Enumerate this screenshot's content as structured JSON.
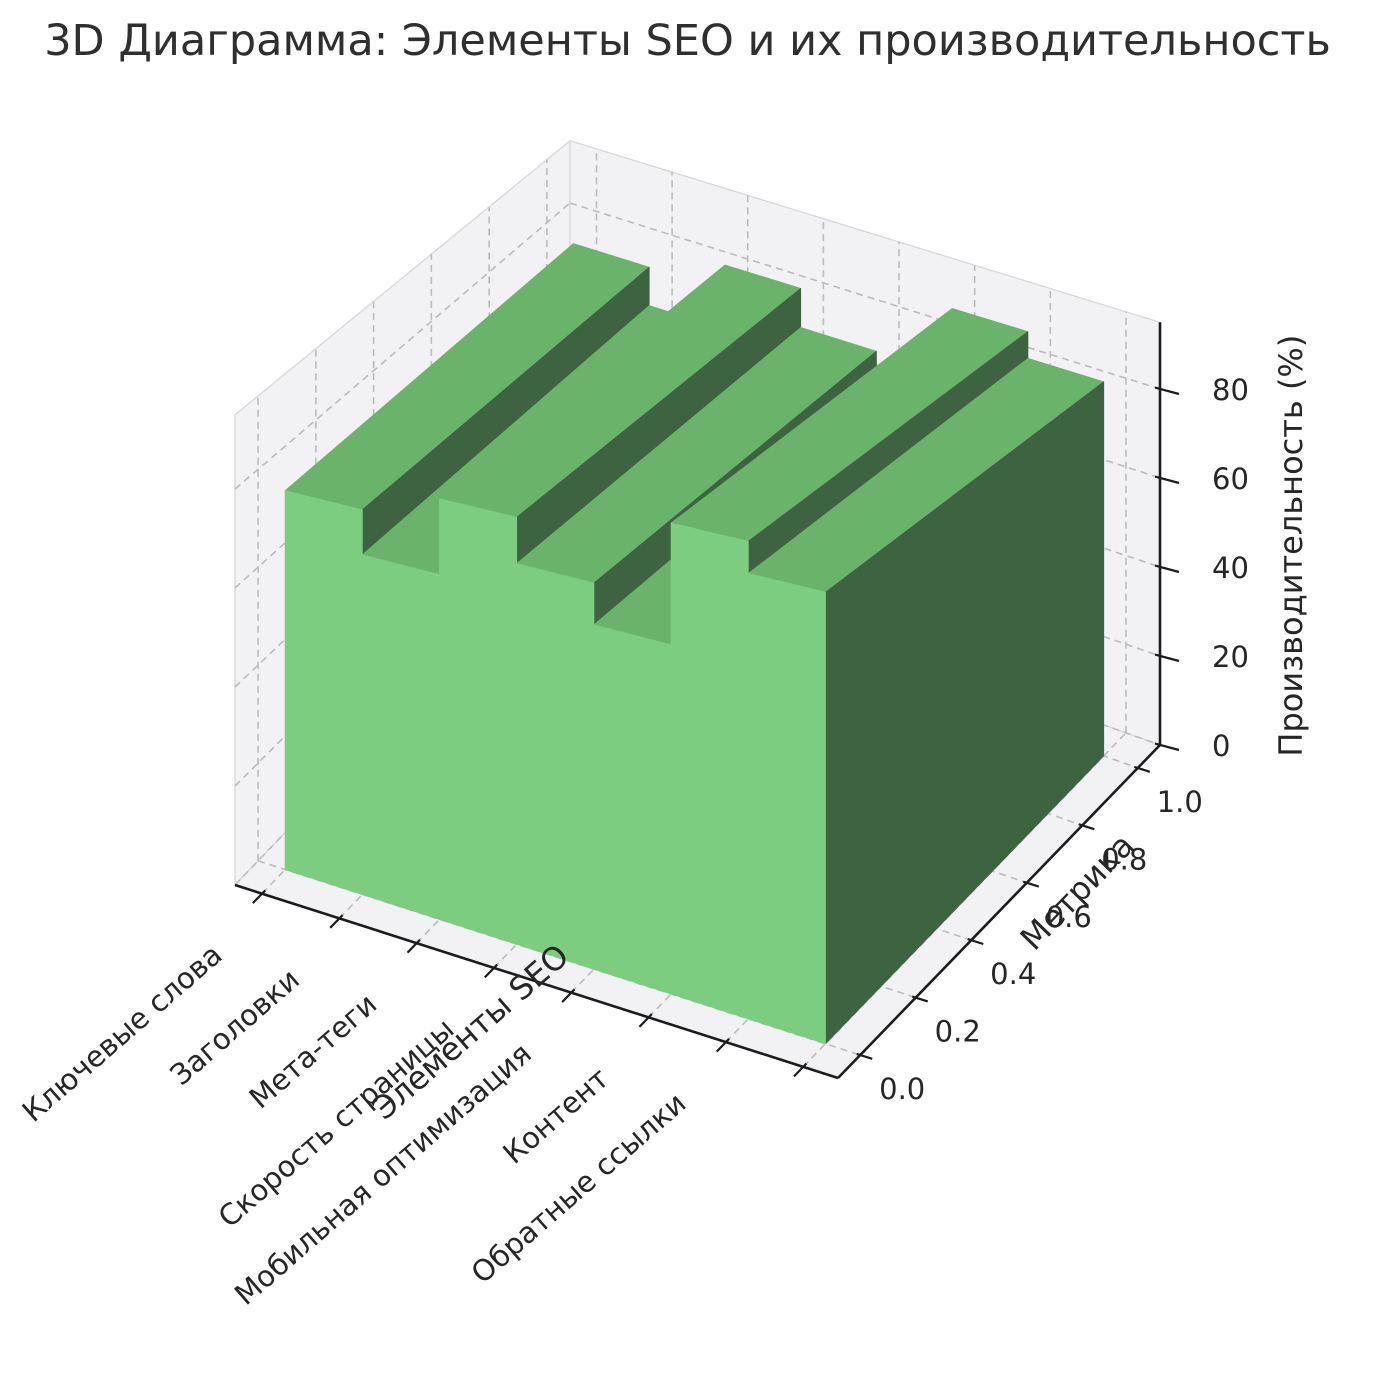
{
  "chart_data": {
    "type": "bar",
    "projection": "3d",
    "title": "3D Диаграмма: Элементы SEO и их производительность",
    "categories": [
      "Ключевые слова",
      "Заголовки",
      "Мета-теги",
      "Скорость страницы",
      "Мобильная оптимизация",
      "Контент",
      "Обратные ссылки"
    ],
    "values": [
      77,
      68,
      83,
      74,
      66,
      89,
      83
    ],
    "xlabel": "Элементы SEO",
    "ylabel": "Метрика",
    "zlabel": "Производительность (%)",
    "y_tick_labels": [
      "0.0",
      "0.2",
      "0.4",
      "0.6",
      "0.8",
      "1.0"
    ],
    "y_tick_values": [
      0,
      0.2,
      0.4,
      0.6,
      0.8,
      1.0
    ],
    "z_ticks": [
      0,
      20,
      40,
      60,
      80
    ],
    "zlim": [
      0,
      95
    ],
    "ylim": [
      0,
      1
    ],
    "bar_depth": 1,
    "grid": true,
    "legend": null,
    "colors": {
      "bar_top": "#6ab36a",
      "bar_front": "#7ccd7f",
      "bar_side": "#3e6340",
      "pane": "#f2f1f4",
      "pane_edge": "#d8d7dc",
      "grid_line": "#bcbcbc",
      "axis_line": "#1c1c1c",
      "text": "#262626",
      "title_text": "#2f2f2f"
    }
  }
}
